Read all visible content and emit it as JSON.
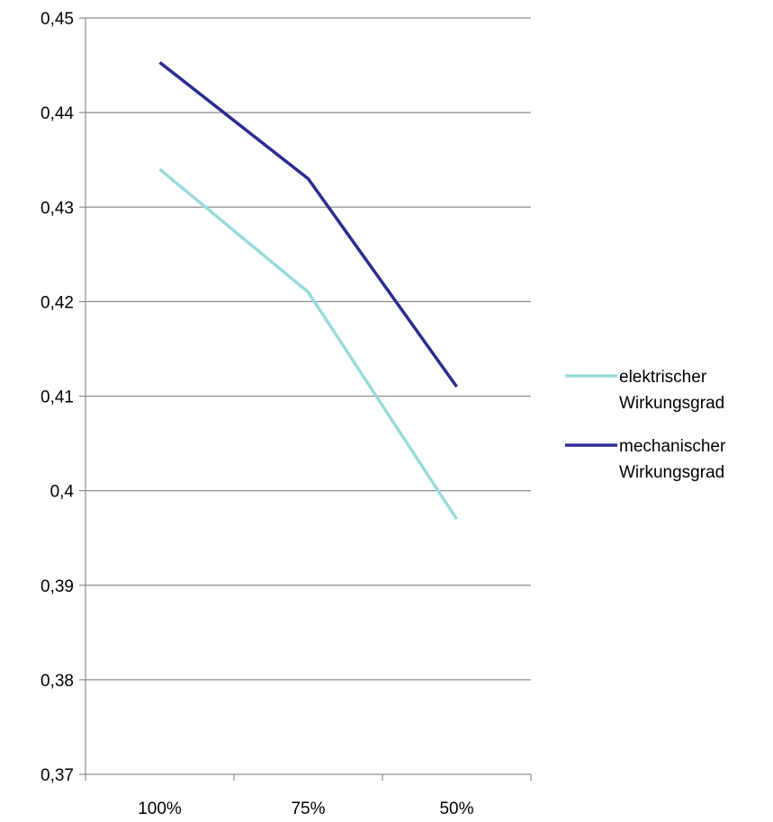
{
  "chart_data": {
    "type": "line",
    "title": "",
    "xlabel": "",
    "ylabel": "",
    "categories": [
      "100%",
      "75%",
      "50%"
    ],
    "ylim": [
      0.37,
      0.45
    ],
    "y_ticks": [
      "0,37",
      "0,38",
      "0,39",
      "0,4",
      "0,41",
      "0,42",
      "0,43",
      "0,44",
      "0,45"
    ],
    "grid": "horizontal",
    "legend_position": "right",
    "series": [
      {
        "name_lines": [
          "elektrischer",
          "Wirkungsgrad"
        ],
        "color": "#99dada",
        "values": [
          0.434,
          0.421,
          0.397
        ]
      },
      {
        "name_lines": [
          "mechanischer",
          "Wirkungsgrad"
        ],
        "color": "#2b2b91",
        "values": [
          0.4453,
          0.433,
          0.411
        ]
      }
    ]
  }
}
